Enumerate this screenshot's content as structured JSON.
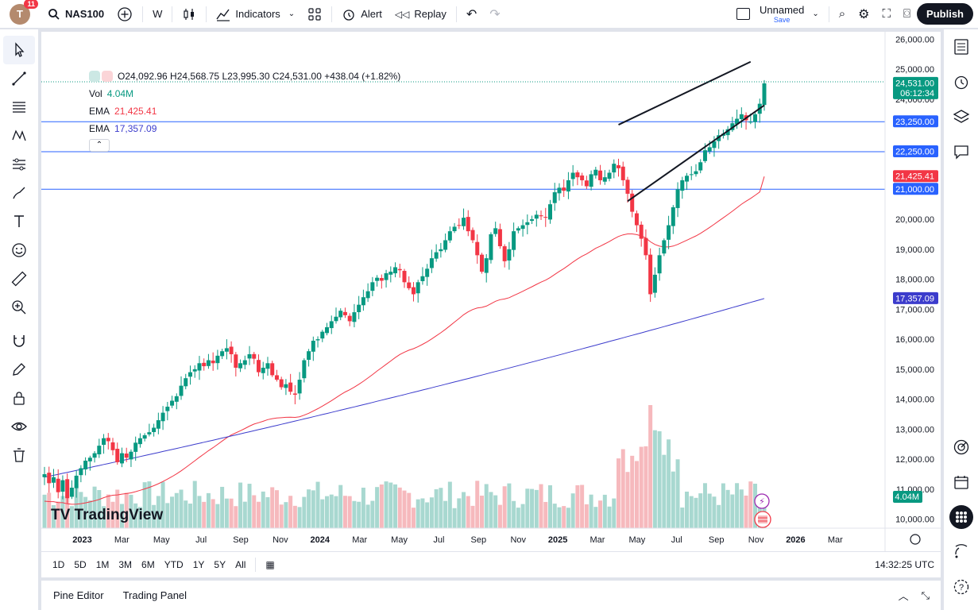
{
  "topbar": {
    "notifications": "11",
    "avatar_letter": "T",
    "symbol": "NAS100",
    "interval": "W",
    "indicators_label": "Indicators",
    "alert_label": "Alert",
    "replay_label": "Replay",
    "layout_name": "Unnamed",
    "layout_save": "Save",
    "publish_label": "Publish"
  },
  "legend": {
    "ohlc": "O24,092.96 H24,568.75 L23,995.30 C24,531.00 +438.04 (+1.82%)",
    "vol_label": "Vol",
    "vol_value": "4.04M",
    "ema1_label": "EMA",
    "ema1_value": "21,425.41",
    "ema2_label": "EMA",
    "ema2_value": "17,357.09"
  },
  "colors": {
    "up": "#089981",
    "down": "#f23645",
    "ema_fast": "#f23645",
    "ema_slow": "#3c3ccc",
    "hline": "#2962ff",
    "vol_up": "#a8d8d0",
    "vol_down": "#f6b9bd"
  },
  "chart_data": {
    "type": "candlestick",
    "title": "NAS100, W",
    "interval": "W",
    "y_axis": {
      "min": 9700,
      "max": 26250,
      "ticks": [
        "10,000.00",
        "11,000.00",
        "12,000.00",
        "13,000.00",
        "14,000.00",
        "15,000.00",
        "16,000.00",
        "17,000.00",
        "18,000.00",
        "19,000.00",
        "20,000.00",
        "24,000.00",
        "25,000.00",
        "26,000.00"
      ]
    },
    "x_axis": {
      "labels": [
        "2023",
        "Mar",
        "May",
        "Jul",
        "Sep",
        "Nov",
        "2024",
        "Mar",
        "May",
        "Jul",
        "Sep",
        "Nov",
        "2025",
        "Mar",
        "May",
        "Jul",
        "Sep",
        "Nov",
        "2026",
        "Mar"
      ]
    },
    "price_tags": {
      "last": "24,531.00",
      "countdown": "06:12:34",
      "ema_fast": "21,425.41",
      "ema_slow": "17,357.09",
      "volume": "4.04M"
    },
    "horizontal_lines": [
      {
        "value": 23250,
        "label": "23,250.00"
      },
      {
        "value": 22250,
        "label": "22,250.00"
      },
      {
        "value": 21000,
        "label": "21,000.00"
      }
    ],
    "channel_lines": [
      {
        "from_week": 126,
        "from_value": 23150,
        "to_week": 155,
        "to_value": 25250
      },
      {
        "from_week": 128,
        "from_value": 20600,
        "to_week": 158,
        "to_value": 23800
      }
    ],
    "series_close": [
      11500,
      11200,
      11400,
      10900,
      11300,
      10700,
      11050,
      11450,
      11700,
      11950,
      12050,
      12200,
      12450,
      12700,
      12600,
      12300,
      11900,
      12200,
      12050,
      12250,
      12550,
      12700,
      12800,
      12900,
      13050,
      13300,
      13550,
      13750,
      13950,
      14100,
      14450,
      14700,
      14900,
      15000,
      15200,
      15100,
      15300,
      15200,
      15450,
      15600,
      15700,
      15500,
      15050,
      15200,
      15300,
      15500,
      15350,
      14900,
      15050,
      15200,
      14800,
      14650,
      14400,
      14500,
      14250,
      14150,
      14650,
      15300,
      15600,
      15950,
      16000,
      16250,
      16400,
      16600,
      16750,
      16950,
      16800,
      16600,
      16900,
      17150,
      17400,
      17600,
      17900,
      18050,
      17950,
      18200,
      18250,
      18400,
      18300,
      17900,
      17700,
      17500,
      17900,
      18100,
      18350,
      18700,
      18900,
      19000,
      19300,
      19600,
      19750,
      19800,
      20050,
      19600,
      19300,
      18800,
      18250,
      18700,
      19500,
      19700,
      19100,
      18600,
      19000,
      19600,
      19700,
      19800,
      19900,
      20000,
      20150,
      20100,
      20050,
      20500,
      20900,
      21050,
      20950,
      21300,
      21550,
      21400,
      21300,
      21100,
      21500,
      21650,
      21300,
      21400,
      21550,
      21850,
      21700,
      21300,
      20850,
      20250,
      19800,
      19350,
      18800,
      17500,
      18150,
      18800,
      19300,
      19800,
      20400,
      21000,
      21300,
      21450,
      21500,
      21600,
      21900,
      22300,
      22400,
      22600,
      22800,
      22850,
      23000,
      23200,
      23350,
      23500,
      23300,
      23250,
      23500,
      23850,
      24530
    ]
  }
}
